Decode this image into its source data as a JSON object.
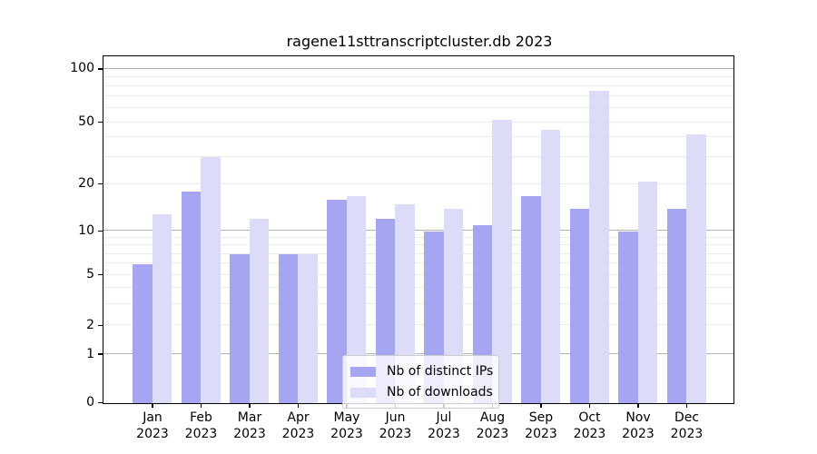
{
  "chart_data": {
    "type": "bar",
    "title": "ragene11sttranscriptcluster.db 2023",
    "categories": [
      "Jan",
      "Feb",
      "Mar",
      "Apr",
      "May",
      "Jun",
      "Jul",
      "Aug",
      "Sep",
      "Oct",
      "Nov",
      "Dec"
    ],
    "category_year": "2023",
    "series": [
      {
        "name": "Nb of distinct IPs",
        "color": "#a5a5f2",
        "values": [
          6,
          18,
          7,
          7,
          16,
          12,
          10,
          11,
          17,
          14,
          10,
          14
        ]
      },
      {
        "name": "Nb of downloads",
        "color": "#dcdcf9",
        "values": [
          13,
          30,
          12,
          7,
          17,
          15,
          14,
          52,
          45,
          76,
          21,
          42
        ]
      }
    ],
    "yticks": [
      0,
      1,
      2,
      5,
      10,
      20,
      50,
      100
    ],
    "minor_gridlines": [
      3,
      4,
      6,
      7,
      8,
      9,
      30,
      40,
      60,
      70,
      80,
      90
    ],
    "emphasized_gridlines": [
      1,
      10,
      100
    ],
    "ylim": [
      0,
      117
    ],
    "scale": "log1p",
    "grid": true,
    "legend_position": "lower center"
  },
  "colors": {
    "background": "#ffffff",
    "axis_frame": "#000000",
    "grid_minor": "#ececec",
    "grid_major": "#b2b2b2",
    "text": "#000000",
    "legend_border": "#cccccc"
  }
}
